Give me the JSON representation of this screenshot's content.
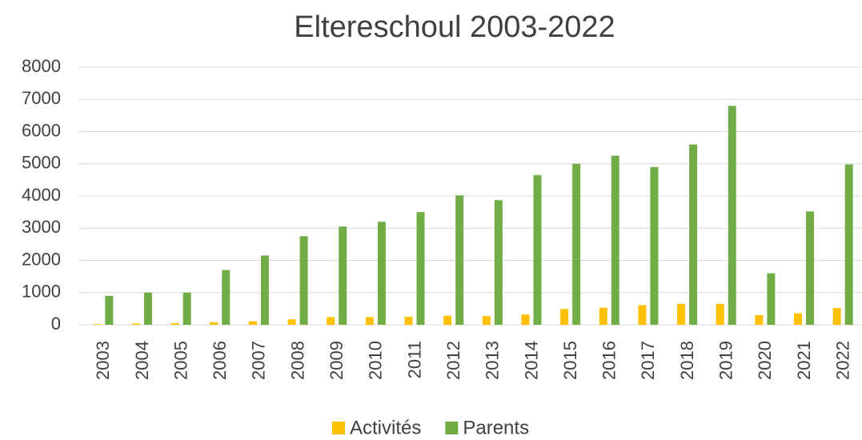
{
  "chart_data": {
    "type": "bar",
    "title": "Eltereschoul 2003-2022",
    "categories": [
      "2003",
      "2004",
      "2005",
      "2006",
      "2007",
      "2008",
      "2009",
      "2010",
      "2011",
      "2012",
      "2013",
      "2014",
      "2015",
      "2016",
      "2017",
      "2018",
      "2019",
      "2020",
      "2021",
      "2022"
    ],
    "series": [
      {
        "name": "Activités",
        "color": "#ffc000",
        "values": [
          20,
          40,
          50,
          80,
          110,
          170,
          240,
          240,
          250,
          280,
          270,
          320,
          490,
          530,
          610,
          650,
          650,
          300,
          360,
          520
        ]
      },
      {
        "name": "Parents",
        "color": "#70ad47",
        "values": [
          900,
          1000,
          1000,
          1700,
          2150,
          2750,
          3050,
          3200,
          3500,
          4020,
          3870,
          4650,
          5000,
          5250,
          4900,
          5600,
          6800,
          1600,
          3520,
          4980
        ]
      }
    ],
    "ylim": [
      0,
      8000
    ],
    "yticks": [
      0,
      1000,
      2000,
      3000,
      4000,
      5000,
      6000,
      7000,
      8000
    ],
    "grid": true,
    "legend": "bottom"
  }
}
